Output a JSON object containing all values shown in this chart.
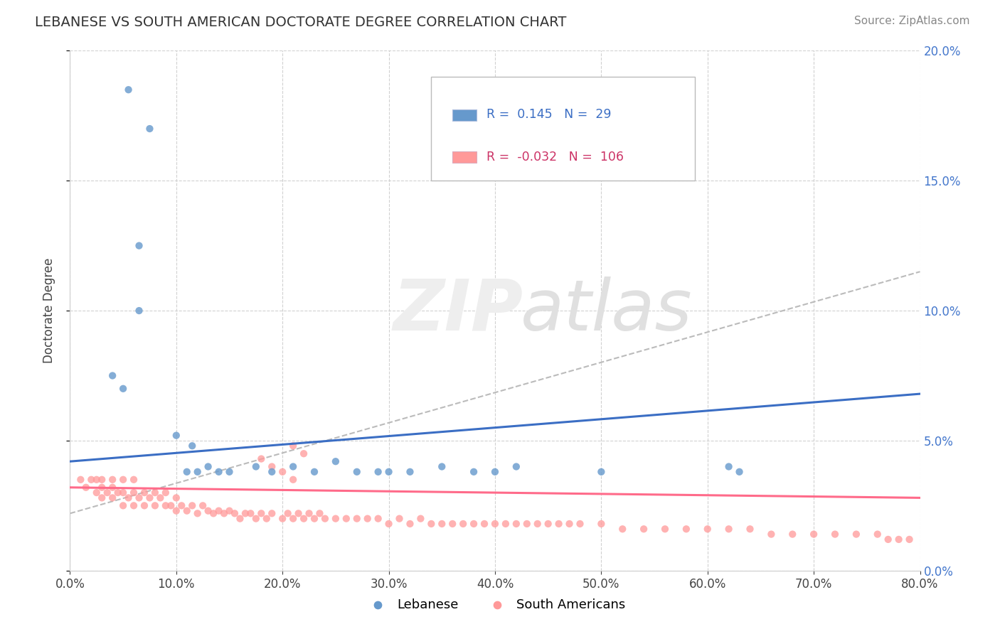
{
  "title": "LEBANESE VS SOUTH AMERICAN DOCTORATE DEGREE CORRELATION CHART",
  "source": "Source: ZipAtlas.com",
  "ylabel": "Doctorate Degree",
  "xlim": [
    0.0,
    0.8
  ],
  "ylim": [
    0.0,
    0.2
  ],
  "xticks": [
    0.0,
    0.1,
    0.2,
    0.3,
    0.4,
    0.5,
    0.6,
    0.7,
    0.8
  ],
  "xticklabels": [
    "0.0%",
    "",
    "",
    "",
    "",
    "",
    "",
    "",
    "80.0%"
  ],
  "yticks": [
    0.0,
    0.05,
    0.1,
    0.15,
    0.2
  ],
  "yticklabels_left": [
    "",
    "",
    "",
    "",
    ""
  ],
  "yticklabels_right": [
    "0.0%",
    "5.0%",
    "10.0%",
    "15.0%",
    "20.0%"
  ],
  "legend_v1": "0.145",
  "legend_nv1": "29",
  "legend_v2": "-0.032",
  "legend_nv2": "106",
  "color_lebanese": "#6699CC",
  "color_sa": "#FF9999",
  "color_line_lebanese": "#3B6EC4",
  "color_line_sa": "#FF6B8A",
  "color_dashed_line": "#BBBBBB",
  "color_right_axis": "#4477CC",
  "leb_line_x0": 0.0,
  "leb_line_y0": 0.042,
  "leb_line_x1": 0.8,
  "leb_line_y1": 0.068,
  "sa_line_x0": 0.0,
  "sa_line_y0": 0.032,
  "sa_line_x1": 0.8,
  "sa_line_y1": 0.028,
  "dash_line_x0": 0.0,
  "dash_line_y0": 0.022,
  "dash_line_x1": 0.8,
  "dash_line_y1": 0.115,
  "lebanese_x": [
    0.055,
    0.075,
    0.065,
    0.065,
    0.04,
    0.05,
    0.1,
    0.11,
    0.12,
    0.115,
    0.13,
    0.14,
    0.15,
    0.175,
    0.19,
    0.21,
    0.23,
    0.25,
    0.27,
    0.29,
    0.3,
    0.32,
    0.35,
    0.38,
    0.4,
    0.42,
    0.5,
    0.62,
    0.63
  ],
  "lebanese_y": [
    0.185,
    0.17,
    0.125,
    0.1,
    0.075,
    0.07,
    0.052,
    0.038,
    0.038,
    0.048,
    0.04,
    0.038,
    0.038,
    0.04,
    0.038,
    0.04,
    0.038,
    0.042,
    0.038,
    0.038,
    0.038,
    0.038,
    0.04,
    0.038,
    0.038,
    0.04,
    0.038,
    0.04,
    0.038
  ],
  "sa_x": [
    0.01,
    0.015,
    0.02,
    0.025,
    0.025,
    0.03,
    0.03,
    0.03,
    0.035,
    0.04,
    0.04,
    0.04,
    0.045,
    0.05,
    0.05,
    0.05,
    0.055,
    0.06,
    0.06,
    0.06,
    0.065,
    0.07,
    0.07,
    0.075,
    0.08,
    0.08,
    0.085,
    0.09,
    0.09,
    0.095,
    0.1,
    0.1,
    0.105,
    0.11,
    0.115,
    0.12,
    0.125,
    0.13,
    0.135,
    0.14,
    0.145,
    0.15,
    0.155,
    0.16,
    0.165,
    0.17,
    0.175,
    0.18,
    0.185,
    0.19,
    0.2,
    0.205,
    0.21,
    0.215,
    0.22,
    0.225,
    0.23,
    0.235,
    0.24,
    0.25,
    0.26,
    0.27,
    0.28,
    0.29,
    0.3,
    0.31,
    0.32,
    0.33,
    0.34,
    0.35,
    0.36,
    0.37,
    0.38,
    0.39,
    0.4,
    0.41,
    0.42,
    0.43,
    0.44,
    0.45,
    0.46,
    0.47,
    0.48,
    0.5,
    0.52,
    0.54,
    0.56,
    0.58,
    0.6,
    0.62,
    0.64,
    0.66,
    0.68,
    0.7,
    0.72,
    0.74,
    0.76,
    0.77,
    0.78,
    0.79,
    0.21,
    0.22,
    0.18,
    0.19,
    0.2,
    0.21
  ],
  "sa_y": [
    0.035,
    0.032,
    0.035,
    0.03,
    0.035,
    0.028,
    0.032,
    0.035,
    0.03,
    0.028,
    0.032,
    0.035,
    0.03,
    0.025,
    0.03,
    0.035,
    0.028,
    0.025,
    0.03,
    0.035,
    0.028,
    0.025,
    0.03,
    0.028,
    0.025,
    0.03,
    0.028,
    0.025,
    0.03,
    0.025,
    0.023,
    0.028,
    0.025,
    0.023,
    0.025,
    0.022,
    0.025,
    0.023,
    0.022,
    0.023,
    0.022,
    0.023,
    0.022,
    0.02,
    0.022,
    0.022,
    0.02,
    0.022,
    0.02,
    0.022,
    0.02,
    0.022,
    0.02,
    0.022,
    0.02,
    0.022,
    0.02,
    0.022,
    0.02,
    0.02,
    0.02,
    0.02,
    0.02,
    0.02,
    0.018,
    0.02,
    0.018,
    0.02,
    0.018,
    0.018,
    0.018,
    0.018,
    0.018,
    0.018,
    0.018,
    0.018,
    0.018,
    0.018,
    0.018,
    0.018,
    0.018,
    0.018,
    0.018,
    0.018,
    0.016,
    0.016,
    0.016,
    0.016,
    0.016,
    0.016,
    0.016,
    0.014,
    0.014,
    0.014,
    0.014,
    0.014,
    0.014,
    0.012,
    0.012,
    0.012,
    0.048,
    0.045,
    0.043,
    0.04,
    0.038,
    0.035
  ]
}
